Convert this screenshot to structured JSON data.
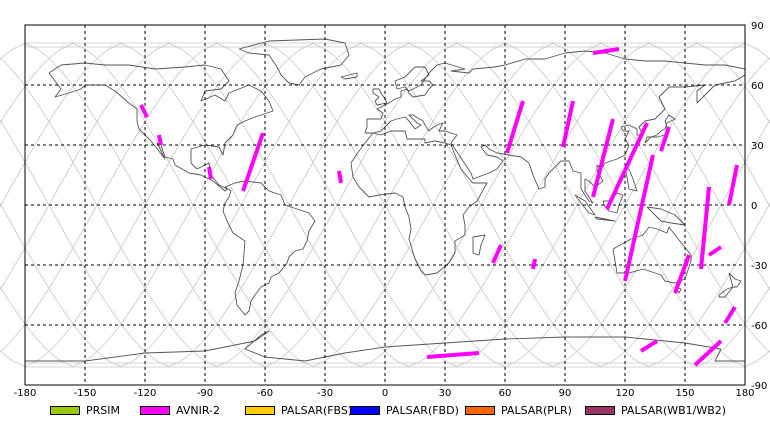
{
  "chart_data": {
    "type": "map",
    "projection": "equirectangular",
    "xlim": [
      -180,
      180
    ],
    "ylim": [
      -90,
      90
    ],
    "x_ticks": [
      "-180",
      "-150",
      "-120",
      "-90",
      "-60",
      "-30",
      "0",
      "30",
      "60",
      "90",
      "120",
      "150",
      "180"
    ],
    "y_ticks": [
      "90",
      "60",
      "30",
      "0",
      "-30",
      "-60",
      "-90"
    ],
    "grid": true,
    "legend_position": "bottom",
    "legend": [
      {
        "label": "PRSIM",
        "color": "#99cc00"
      },
      {
        "label": "AVNIR-2",
        "color": "#ff00ff"
      },
      {
        "label": "PALSAR(FBS)",
        "color": "#ffcc00"
      },
      {
        "label": "PALSAR(FBD)",
        "color": "#0000ff"
      },
      {
        "label": "PALSAR(PLR)",
        "color": "#ff6600"
      },
      {
        "label": "PALSAR(WB1/WB2)",
        "color": "#993366"
      }
    ],
    "avnir2_segments": [
      [
        [
          -122,
          50
        ],
        [
          -119,
          44
        ]
      ],
      [
        [
          -113,
          35
        ],
        [
          -112,
          30
        ]
      ],
      [
        [
          -88,
          19
        ],
        [
          -87,
          13
        ]
      ],
      [
        [
          -71,
          7
        ],
        [
          -61,
          36
        ]
      ],
      [
        [
          -23,
          17
        ],
        [
          -22,
          11
        ]
      ],
      [
        [
          74,
          -32
        ],
        [
          75,
          -27
        ]
      ],
      [
        [
          21,
          -76
        ],
        [
          47,
          -74
        ]
      ],
      [
        [
          54,
          -29
        ],
        [
          58,
          -20
        ]
      ],
      [
        [
          61,
          26
        ],
        [
          69,
          52
        ]
      ],
      [
        [
          89,
          29
        ],
        [
          94,
          52
        ]
      ],
      [
        [
          104,
          4
        ],
        [
          114,
          43
        ]
      ],
      [
        [
          104,
          76
        ],
        [
          117,
          78
        ]
      ],
      [
        [
          111,
          -2
        ],
        [
          131,
          41
        ]
      ],
      [
        [
          120,
          -38
        ],
        [
          134,
          25
        ]
      ],
      [
        [
          128,
          -73
        ],
        [
          136,
          -68
        ]
      ],
      [
        [
          138,
          27
        ],
        [
          142,
          39
        ]
      ],
      [
        [
          145,
          -44
        ],
        [
          152,
          -25
        ]
      ],
      [
        [
          155,
          -80
        ],
        [
          168,
          -68
        ]
      ],
      [
        [
          162,
          -25
        ],
        [
          168,
          -21
        ]
      ],
      [
        [
          158,
          -32
        ],
        [
          162,
          9
        ]
      ],
      [
        [
          170,
          -59
        ],
        [
          175,
          -51
        ]
      ],
      [
        [
          172,
          0
        ],
        [
          176,
          20
        ]
      ]
    ]
  }
}
